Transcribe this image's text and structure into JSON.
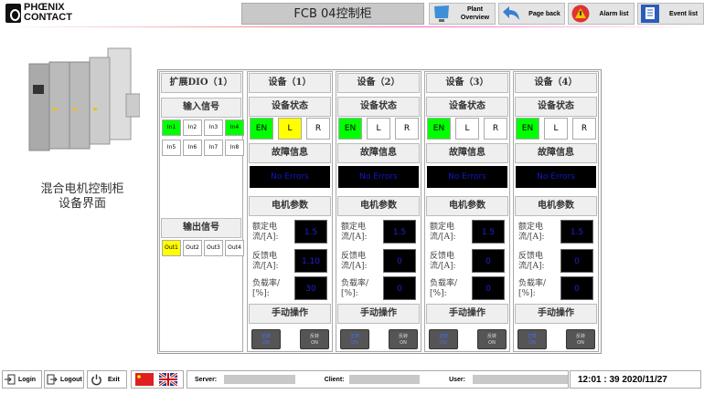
{
  "header": {
    "logo": "PHOENIX CONTACT",
    "title": "FCB 04控制柜",
    "nav": [
      {
        "label": "Plant Overview",
        "icon": "monitor-icon"
      },
      {
        "label": "Page back",
        "icon": "back-arrow-icon"
      },
      {
        "label": "Alarm list",
        "icon": "alarm-icon"
      },
      {
        "label": "Event list",
        "icon": "event-list-icon"
      }
    ]
  },
  "left": {
    "caption_line1": "混合电机控制柜",
    "caption_line2": "设备界面"
  },
  "dio": {
    "title": "扩展DIO（1）",
    "input_title": "输入信号",
    "output_title": "输出信号",
    "inputs": [
      {
        "label": "In1",
        "on": true
      },
      {
        "label": "In2",
        "on": false
      },
      {
        "label": "In3",
        "on": false
      },
      {
        "label": "In4",
        "on": true
      },
      {
        "label": "In5",
        "on": false
      },
      {
        "label": "In6",
        "on": false
      },
      {
        "label": "In7",
        "on": false
      },
      {
        "label": "In8",
        "on": false
      }
    ],
    "outputs": [
      {
        "label": "Out1",
        "on": true
      },
      {
        "label": "Out2",
        "on": false
      },
      {
        "label": "Out3",
        "on": false
      },
      {
        "label": "Out4",
        "on": false
      }
    ]
  },
  "labels": {
    "status": "设备状态",
    "fault": "故障信息",
    "motor": "电机参数",
    "manual": "手动操作",
    "en": "EN",
    "l": "L",
    "r": "R",
    "rated1": "额定电",
    "rated2": "流/[A]:",
    "fb1": "反馈电",
    "fb2": "流/[A]:",
    "load1": "负载率/",
    "load2": "[%]:",
    "fwd1": "正转",
    "fwd2": "ON",
    "rev1": "反转",
    "rev2": "ON"
  },
  "devices": [
    {
      "title": "设备（1）",
      "en": true,
      "l": true,
      "r": false,
      "fault": "No Errors",
      "rated": "1.5",
      "feedback": "1.10",
      "load": "30"
    },
    {
      "title": "设备（2）",
      "en": true,
      "l": false,
      "r": false,
      "fault": "No Errors",
      "rated": "1.5",
      "feedback": "0",
      "load": "0"
    },
    {
      "title": "设备（3）",
      "en": true,
      "l": false,
      "r": false,
      "fault": "No Errors",
      "rated": "1.5",
      "feedback": "0",
      "load": "0"
    },
    {
      "title": "设备（4）",
      "en": true,
      "l": false,
      "r": false,
      "fault": "No Errors",
      "rated": "1.5",
      "feedback": "0",
      "load": "0"
    }
  ],
  "footer": {
    "login": "Login",
    "logout": "Logout",
    "exit": "Exit",
    "server": "Server:",
    "client": "Client:",
    "user": "User:",
    "time": "12:01 : 39 2020/11/27"
  },
  "colors": {
    "on_green": "#00ff00",
    "on_yellow": "#ffff00",
    "fault_text": "#1616c8"
  }
}
